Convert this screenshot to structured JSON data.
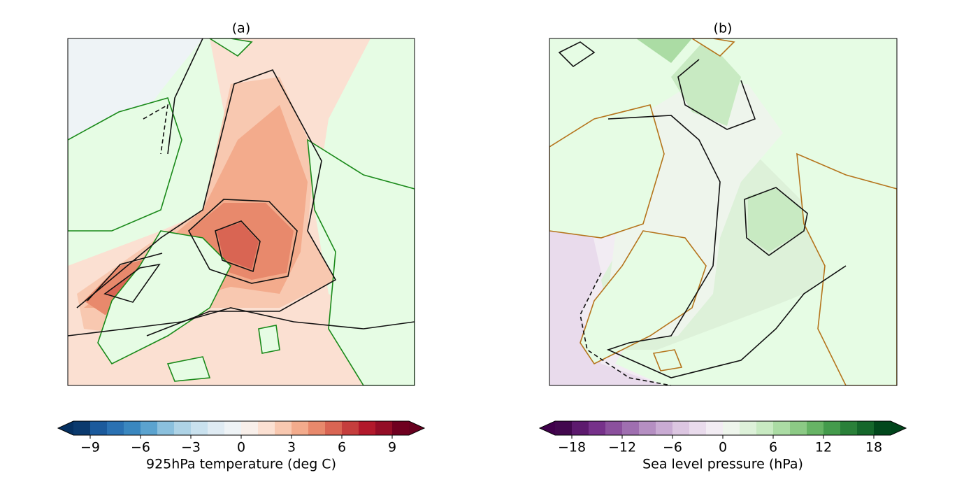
{
  "panels": [
    {
      "title": "(a)",
      "colorbar": {
        "label": "925hPa temperature (deg C)",
        "clim": [
          -10,
          10
        ],
        "ticks": [
          {
            "value": -9,
            "label": "−9"
          },
          {
            "value": -6,
            "label": "−6"
          },
          {
            "value": -3,
            "label": "−3"
          },
          0,
          3,
          6,
          9
        ],
        "colors": [
          "#0b3a6e",
          "#1b5a9c",
          "#2a71b2",
          "#3a87bf",
          "#5ba3cf",
          "#8bc0dd",
          "#aed3e6",
          "#c9e1ee",
          "#dfebf3",
          "#eef3f6",
          "#f8efea",
          "#fbe0d2",
          "#f8c8b0",
          "#f3ab8c",
          "#e8896c",
          "#d96553",
          "#c53e3d",
          "#b2192b",
          "#930d26",
          "#6f0020"
        ],
        "extend_colors": [
          "#053061",
          "#67001f"
        ]
      }
    },
    {
      "title": "(b)",
      "colorbar": {
        "label": "Sea level pressure (hPa)",
        "clim": [
          -20,
          20
        ],
        "ticks": [
          {
            "value": -18,
            "label": "−18"
          },
          {
            "value": -12,
            "label": "−12"
          },
          {
            "value": -6,
            "label": "−6"
          },
          0,
          6,
          12,
          18
        ],
        "colors": [
          "#42084e",
          "#5d1a6e",
          "#76318a",
          "#8b509d",
          "#9f6fb0",
          "#b58fc2",
          "#c9abd3",
          "#dcc6e1",
          "#e9dbec",
          "#f2ecf3",
          "#eef5ec",
          "#ddf1d9",
          "#c8eac2",
          "#abdca4",
          "#8cca85",
          "#67b465",
          "#449b4c",
          "#2a8039",
          "#15672b",
          "#02481c"
        ],
        "extend_colors": [
          "#40004b",
          "#00441b"
        ]
      }
    }
  ]
}
